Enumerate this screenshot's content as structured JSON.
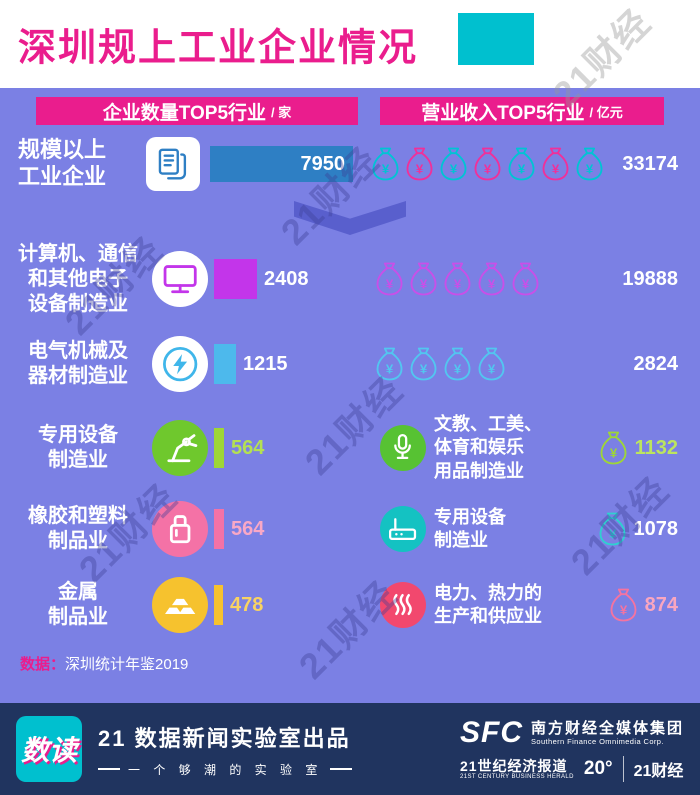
{
  "title": "深圳规上工业企业情况",
  "watermark": "21财经",
  "palette": {
    "bg": "#7b80e4",
    "magenta": "#ea1d8d",
    "teal": "#00c0cf",
    "navy": "#20345f",
    "arrow": "#5459c9"
  },
  "columns": {
    "left": {
      "title": "企业数量TOP5行业",
      "unit": "/ 家"
    },
    "right": {
      "title": "营业收入TOP5行业",
      "unit": "/ 亿元"
    }
  },
  "total": {
    "label": "规模以上\n工业企业",
    "count": "7950",
    "bar": {
      "value": 7950,
      "color": "#2e7fc4"
    },
    "bags": {
      "count": 7,
      "colors": [
        "#00c4d4",
        "#f0309a",
        "#00c4d4",
        "#f0309a",
        "#00c4d4",
        "#f0309a",
        "#00c4d4"
      ]
    },
    "revenue": "33174"
  },
  "rows": [
    {
      "left": {
        "label": "计算机、通信\n和其他电子\n设备制造业",
        "icon": "monitor",
        "icon_bg": "#ffffff",
        "icon_color": "#c335ea",
        "value": "2408",
        "value_color": "#ffffff",
        "bar": {
          "value": 2408,
          "color": "#c335ea"
        }
      },
      "right": {
        "bags": {
          "count": 5,
          "color": "#c94fe8"
        },
        "value": "19888",
        "value_color": "#ffffff"
      }
    },
    {
      "left": {
        "label": "电气机械及\n器材制造业",
        "icon": "lightning",
        "icon_bg": "#ffffff",
        "icon_color": "#3fb6ea",
        "value": "1215",
        "value_color": "#ffffff",
        "bar": {
          "value": 1215,
          "color": "#4db9ec"
        }
      },
      "right": {
        "bags": {
          "count": 4,
          "color": "#52c6f0"
        },
        "value": "2824",
        "value_color": "#ffffff"
      }
    },
    {
      "left": {
        "label": "专用设备\n制造业",
        "icon": "robot-arm",
        "icon_bg": "#6fc82d",
        "icon_color": "#ffffff",
        "value": "564",
        "value_color": "#b4e052",
        "bar": {
          "value": 564,
          "color": "#9ed636"
        }
      },
      "right": {
        "icon": "microphone",
        "icon_bg": "#57c233",
        "icon_color": "#ffffff",
        "label": "文教、工美、\n体育和娱乐\n用品制造业",
        "bags": {
          "count": 1,
          "color": "#9ed636"
        },
        "value": "1132",
        "value_color": "#bce45e"
      }
    },
    {
      "left": {
        "label": "橡胶和塑料\n制品业",
        "icon": "water-bottle",
        "icon_bg": "#f472a6",
        "icon_color": "#ffffff",
        "value": "564",
        "value_color": "#f9a8c6",
        "bar": {
          "value": 564,
          "color": "#f472a6"
        }
      },
      "right": {
        "icon": "router",
        "icon_bg": "#14c2c2",
        "icon_color": "#ffffff",
        "label": "专用设备\n制造业",
        "bags": {
          "count": 1,
          "color": "#2fd0d0"
        },
        "value": "1078",
        "value_color": "#ffffff"
      }
    },
    {
      "left": {
        "label": "金属\n制品业",
        "icon": "gold-ingots",
        "icon_bg": "#f6c22e",
        "icon_color": "#ffffff",
        "value": "478",
        "value_color": "#f9d362",
        "bar": {
          "value": 478,
          "color": "#f6c22e"
        }
      },
      "right": {
        "icon": "steam",
        "icon_bg": "#f2486e",
        "icon_color": "#ffffff",
        "label": "电力、热力的\n生产和供应业",
        "bags": {
          "count": 1,
          "color": "#f573a0"
        },
        "value": "874",
        "value_color": "#f9a6c0"
      }
    }
  ],
  "source": {
    "label": "数据：",
    "text": "深圳统计年鉴2019"
  },
  "footer": {
    "logo": "数读",
    "line1": "21 数据新闻实验室出品",
    "line2": "一 个 够 潮 的 实 验 室",
    "sfc": "SFC",
    "group_cn": "南方财经全媒体集团",
    "group_en": "Southern Finance Omnimedia Corp.",
    "herald_cn": "21世纪经济报道",
    "herald_en": "21ST CENTURY BUSINESS HERALD",
    "badge": "20°",
    "brand": "21财经"
  },
  "chart_data": [
    {
      "type": "bar",
      "title": "企业数量TOP5行业（家）",
      "categories": [
        "规模以上工业企业",
        "计算机、通信和其他电子设备制造业",
        "电气机械及器材制造业",
        "专用设备制造业",
        "橡胶和塑料制品业",
        "金属制品业"
      ],
      "values": [
        7950,
        2408,
        1215,
        564,
        564,
        478
      ],
      "xlabel": "",
      "ylabel": "企业数量（家）"
    },
    {
      "type": "bar",
      "title": "营业收入TOP5行业（亿元）",
      "categories": [
        "规模以上工业企业",
        "计算机、通信和其他电子设备制造业",
        "电气机械及器材制造业",
        "文教、工美、体育和娱乐用品制造业",
        "专用设备制造业",
        "电力、热力的生产和供应业"
      ],
      "values": [
        33174,
        19888,
        2824,
        1132,
        1078,
        874
      ],
      "xlabel": "",
      "ylabel": "营业收入（亿元）"
    }
  ]
}
